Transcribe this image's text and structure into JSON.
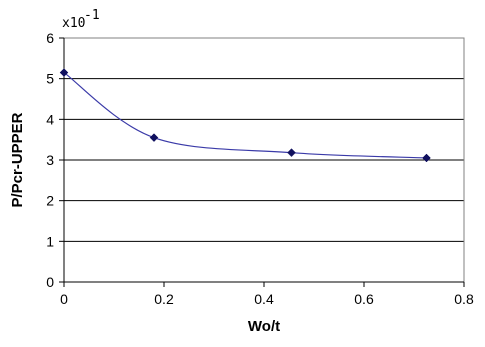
{
  "chart_data": {
    "type": "line",
    "title": "",
    "xlabel": "Wo/t",
    "ylabel": "P/Pcr-UPPER",
    "y_multiplier_label": {
      "base": "x10",
      "exponent": "-1"
    },
    "xlim": [
      0,
      0.8
    ],
    "ylim": [
      0,
      6
    ],
    "x_ticks": [
      "0",
      "0.2",
      "0.4",
      "0.6",
      "0.8"
    ],
    "y_ticks": [
      "0",
      "1",
      "2",
      "3",
      "4",
      "5",
      "6"
    ],
    "grid": {
      "horizontal": true,
      "vertical": false
    },
    "smoothed": true,
    "legend": "none",
    "series": [
      {
        "x": [
          0,
          0.18,
          0.455,
          0.725
        ],
        "y": [
          5.15,
          3.55,
          3.18,
          3.05
        ],
        "color": "#3a3aa8",
        "marker": "diamond",
        "marker_color": "#10105e"
      }
    ]
  }
}
